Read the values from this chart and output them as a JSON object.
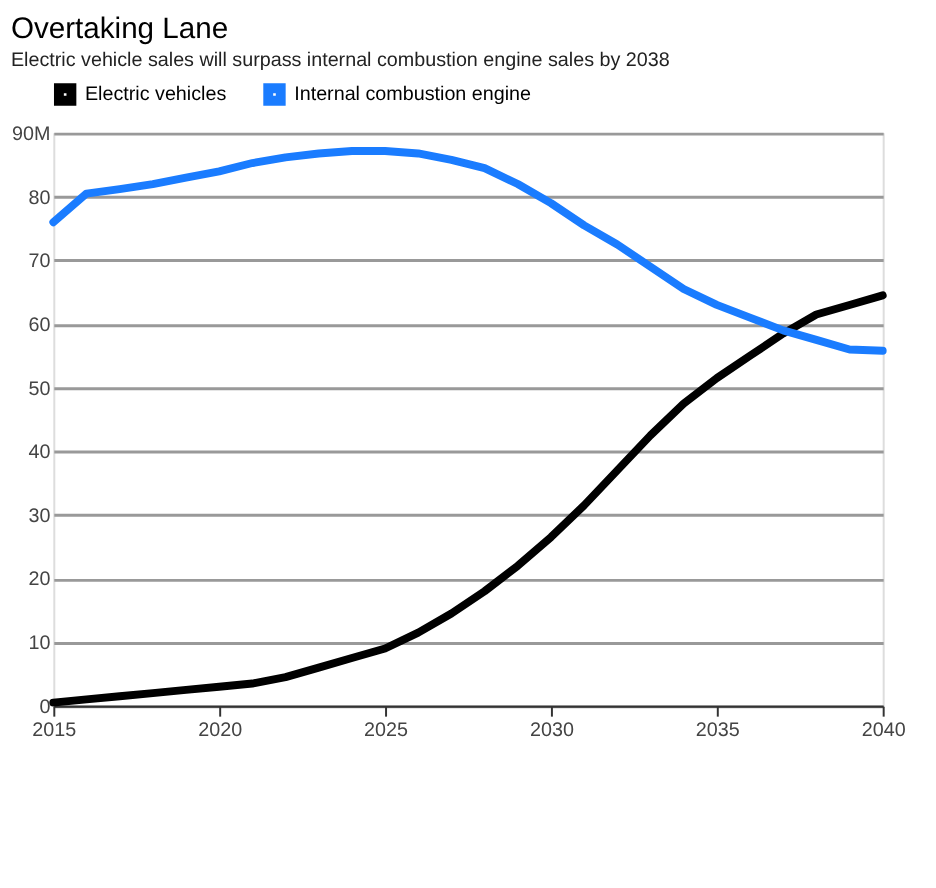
{
  "chart_data": {
    "type": "line",
    "title": "Overtaking Lane",
    "subtitle": "Electric vehicle sales will surpass internal combustion engine sales by 2038",
    "x": [
      2015,
      2016,
      2017,
      2018,
      2019,
      2020,
      2021,
      2022,
      2023,
      2024,
      2025,
      2026,
      2027,
      2028,
      2029,
      2030,
      2031,
      2032,
      2033,
      2034,
      2035,
      2036,
      2037,
      2038,
      2039,
      2040
    ],
    "series": [
      {
        "name": "Electric vehicles",
        "color": "#000000",
        "values": [
          0.5,
          1,
          1.5,
          2,
          2.5,
          3,
          3.5,
          4.5,
          6,
          7.5,
          9,
          11.5,
          14.5,
          18,
          22,
          26.5,
          31.5,
          37,
          42.5,
          47.5,
          51.5,
          55,
          58.5,
          61.5,
          63,
          64.5
        ]
      },
      {
        "name": "Internal combustion engine",
        "color": "#1a7cff",
        "values": [
          76,
          80.5,
          81.2,
          82,
          83,
          84,
          85.3,
          86.2,
          86.8,
          87.2,
          87.2,
          86.8,
          85.8,
          84.5,
          82,
          79,
          75.5,
          72.5,
          69,
          65.5,
          63,
          61,
          59,
          57.5,
          56,
          55.8
        ]
      }
    ],
    "xlim": [
      2015,
      2040
    ],
    "xticks": [
      2015,
      2020,
      2025,
      2030,
      2035,
      2040
    ],
    "ylim": [
      0,
      90
    ],
    "yticks": [
      0,
      10,
      20,
      30,
      40,
      50,
      60,
      70,
      {
        "value": 80,
        "label": "80"
      },
      {
        "value": 90,
        "label": "90M"
      }
    ],
    "grid": "y",
    "legend": "top left",
    "marker": "none",
    "line_style": "solid"
  }
}
